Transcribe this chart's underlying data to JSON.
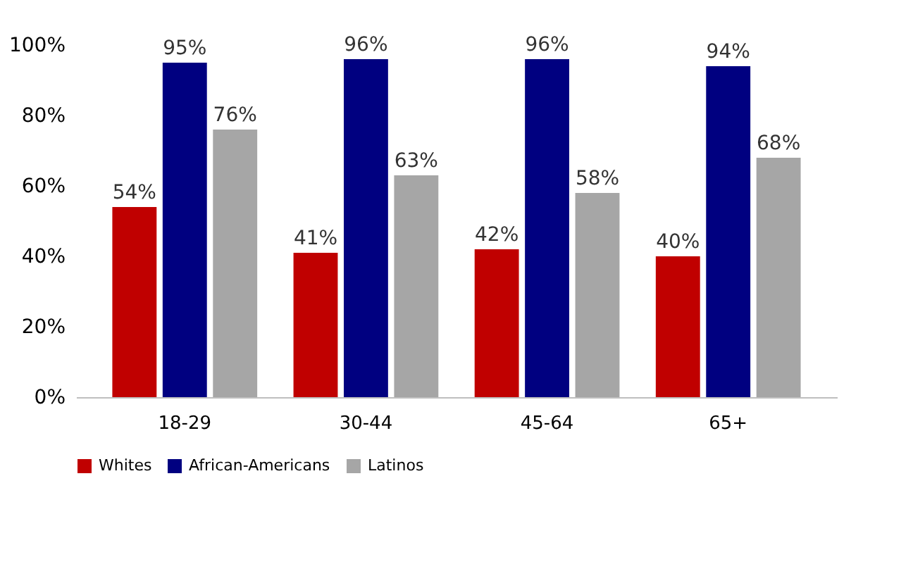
{
  "chart_data": {
    "type": "bar",
    "categories": [
      "18-29",
      "30-44",
      "45-64",
      "65+"
    ],
    "series": [
      {
        "name": "Whites",
        "color": "#c00000",
        "values": [
          54,
          41,
          42,
          40
        ],
        "value_labels": [
          "54%",
          "41%",
          "42%",
          "40%"
        ]
      },
      {
        "name": "African-Americans",
        "color": "#000080",
        "values": [
          95,
          96,
          96,
          94
        ],
        "value_labels": [
          "95%",
          "96%",
          "96%",
          "94%"
        ]
      },
      {
        "name": "Latinos",
        "color": "#a6a6a6",
        "values": [
          76,
          63,
          58,
          68
        ],
        "value_labels": [
          "76%",
          "63%",
          "58%",
          "68%"
        ]
      }
    ],
    "ylim": [
      0,
      100
    ],
    "yticks": [
      {
        "value": 0,
        "label": "0%"
      },
      {
        "value": 20,
        "label": "20%"
      },
      {
        "value": 40,
        "label": "40%"
      },
      {
        "value": 60,
        "label": "60%"
      },
      {
        "value": 80,
        "label": "80%"
      },
      {
        "value": 100,
        "label": "100%"
      }
    ],
    "grid": false,
    "legend": "bottom"
  }
}
